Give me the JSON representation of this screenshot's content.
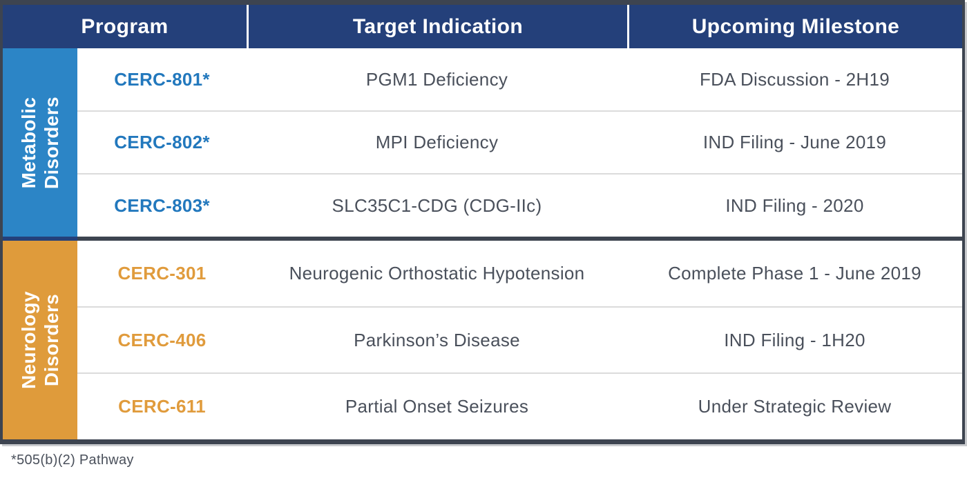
{
  "table": {
    "headers": {
      "program": "Program",
      "indication": "Target Indication",
      "milestone": "Upcoming Milestone"
    },
    "sections": [
      {
        "label_line1": "Metabolic",
        "label_line2": "Disorders",
        "sidebar_color": "#2C85C6",
        "program_color": "#2278BD",
        "rows": [
          {
            "program": "CERC-801*",
            "indication": "PGM1 Deficiency",
            "milestone": "FDA Discussion - 2H19"
          },
          {
            "program": "CERC-802*",
            "indication": "MPI Deficiency",
            "milestone": "IND Filing - June 2019"
          },
          {
            "program": "CERC-803*",
            "indication": "SLC35C1-CDG (CDG-IIc)",
            "milestone": "IND Filing - 2020"
          }
        ]
      },
      {
        "label_line1": "Neurology",
        "label_line2": "Disorders",
        "sidebar_color": "#DF9B3B",
        "program_color": "#E09B3C",
        "rows": [
          {
            "program": "CERC-301",
            "indication": "Neurogenic Orthostatic Hypotension",
            "milestone": "Complete Phase 1 - June 2019"
          },
          {
            "program": "CERC-406",
            "indication": "Parkinson’s Disease",
            "milestone": "IND Filing - 1H20"
          },
          {
            "program": "CERC-611",
            "indication": "Partial Onset Seizures",
            "milestone": "Under Strategic Review"
          }
        ]
      }
    ],
    "footnote": "*505(b)(2) Pathway"
  },
  "colors": {
    "header_bg": "#24407A",
    "border": "#3D4450",
    "separator": "#DBDBDB",
    "text": "#4A505B",
    "metabolic_blue": "#2C85C6",
    "neurology_orange": "#DF9B3B",
    "program_blue": "#2278BD"
  }
}
